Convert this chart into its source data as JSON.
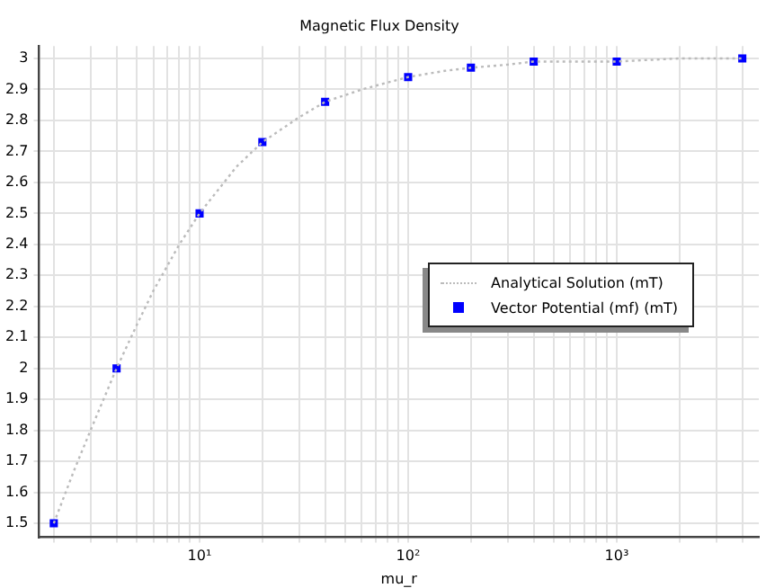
{
  "chart_data": {
    "type": "scatter",
    "title": "Magnetic Flux Density",
    "xlabel": "mu_r",
    "log": "x",
    "grid": true,
    "legend": "right",
    "marker": "square",
    "xlim": [
      1.7,
      4800
    ],
    "ylim": [
      1.455,
      3.04
    ],
    "xticks": [
      {
        "value": 2,
        "label": null
      },
      {
        "value": 3,
        "label": null
      },
      {
        "value": 4,
        "label": null
      },
      {
        "value": 5,
        "label": null
      },
      {
        "value": 6,
        "label": null
      },
      {
        "value": 7,
        "label": null
      },
      {
        "value": 8,
        "label": null
      },
      {
        "value": 9,
        "label": null
      },
      {
        "value": 10,
        "label": "10¹"
      },
      {
        "value": 20,
        "label": null
      },
      {
        "value": 30,
        "label": null
      },
      {
        "value": 40,
        "label": null
      },
      {
        "value": 50,
        "label": null
      },
      {
        "value": 60,
        "label": null
      },
      {
        "value": 70,
        "label": null
      },
      {
        "value": 80,
        "label": null
      },
      {
        "value": 90,
        "label": null
      },
      {
        "value": 100,
        "label": "10²"
      },
      {
        "value": 200,
        "label": null
      },
      {
        "value": 300,
        "label": null
      },
      {
        "value": 400,
        "label": null
      },
      {
        "value": 500,
        "label": null
      },
      {
        "value": 600,
        "label": null
      },
      {
        "value": 700,
        "label": null
      },
      {
        "value": 800,
        "label": null
      },
      {
        "value": 900,
        "label": null
      },
      {
        "value": 1000,
        "label": "10³"
      },
      {
        "value": 2000,
        "label": null
      },
      {
        "value": 3000,
        "label": null
      },
      {
        "value": 4000,
        "label": null
      }
    ],
    "yticks": [
      1.5,
      1.6,
      1.7,
      1.8,
      1.9,
      2,
      2.1,
      2.2,
      2.3,
      2.4,
      2.5,
      2.6,
      2.7,
      2.8,
      2.9,
      3
    ],
    "series": [
      {
        "name": "Analytical Solution (mT)",
        "type": "line",
        "line_style": "dotted",
        "marker": "none",
        "color": "#bbbbbb",
        "x": [
          2,
          2.5,
          3,
          4,
          5,
          6,
          8,
          10,
          15,
          20,
          30,
          40,
          60,
          100,
          150,
          200,
          300,
          400,
          600,
          1000,
          2000,
          4000
        ],
        "values": [
          1.5,
          1.67,
          1.8,
          2.0,
          2.14,
          2.25,
          2.4,
          2.5,
          2.65,
          2.73,
          2.81,
          2.86,
          2.9,
          2.94,
          2.96,
          2.97,
          2.98,
          2.99,
          2.99,
          2.99,
          3.0,
          3.0
        ]
      },
      {
        "name": "Vector Potential (mf) (mT)",
        "color": "#0000ff",
        "x": [
          2,
          4,
          10,
          20,
          40,
          100,
          200,
          400,
          1000,
          4000
        ],
        "values": [
          1.5,
          2,
          2.5,
          2.73,
          2.86,
          2.94,
          2.97,
          2.99,
          2.99,
          3.0
        ]
      }
    ]
  }
}
